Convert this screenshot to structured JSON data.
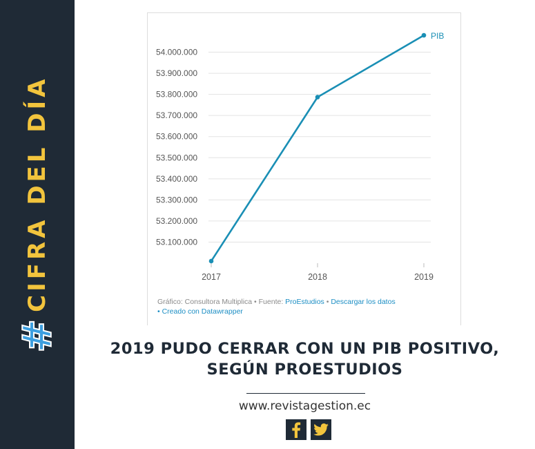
{
  "sidebar": {
    "hash": "#",
    "label": "CIFRA DEL DÍA"
  },
  "chart_data": {
    "type": "line",
    "x": [
      "2017",
      "2018",
      "2019"
    ],
    "series": [
      {
        "name": "PIB",
        "values": [
          53010000,
          53787000,
          54080000
        ]
      }
    ],
    "ylim": [
      53000000,
      54100000
    ],
    "y_ticks": [
      53100000,
      53200000,
      53300000,
      53400000,
      53500000,
      53600000,
      53700000,
      53800000,
      53900000,
      54000000
    ],
    "y_tick_labels": [
      "53.100.000",
      "53.200.000",
      "53.300.000",
      "53.400.000",
      "53.500.000",
      "53.600.000",
      "53.700.000",
      "53.800.000",
      "53.900.000",
      "54.000.000"
    ],
    "grid": true,
    "line_color": "#1a8fb5"
  },
  "credits": {
    "prefix": "Gráfico: Consultora Multiplica • Fuente: ",
    "source_link": "ProEstudios",
    "separator": " • ",
    "download_link": "Descargar los datos",
    "created_link": "• Creado con Datawrapper"
  },
  "headline": {
    "line1": "2019 PUDO CERRAR CON UN PIB POSITIVO,",
    "line2": "SEGÚN PROESTUDIOS"
  },
  "website": "www.revistagestion.ec",
  "social": {
    "facebook": "f",
    "twitter": "twitter"
  },
  "colors": {
    "sidebar_bg": "#1f2a36",
    "accent_yellow": "#f2c43d",
    "accent_blue": "#3d9fe0"
  }
}
